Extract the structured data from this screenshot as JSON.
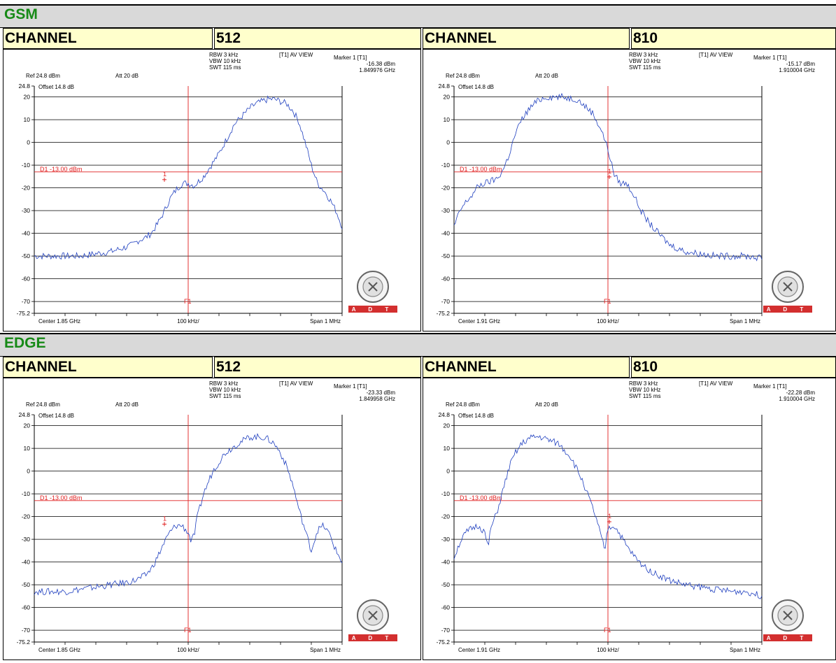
{
  "sections": [
    {
      "title": "GSM",
      "panels": [
        {
          "channel_label": "CHANNEL",
          "channel": "512",
          "rbw": "RBW 3 kHz",
          "vbw": "VBW 10 kHz",
          "swt": "SWT 115 ms",
          "view": "[T1] AV VIEW",
          "marker_title": "Marker 1 [T1]",
          "marker_level": "-16.38 dBm",
          "marker_freq": "1.849976 GHz",
          "ref": "Ref 24.8 dBm",
          "att": "Att 20 dB",
          "offset": "Offset 14.8 dB",
          "center": "Center 1.85 GHz",
          "div": "100 kHz/",
          "span": "Span 1 MHz",
          "d1": "D1 -13.00 dBm",
          "f1": "F1",
          "marker_num": "1"
        },
        {
          "channel_label": "CHANNEL",
          "channel": "810",
          "rbw": "RBW 3 kHz",
          "vbw": "VBW 10 kHz",
          "swt": "SWT 115 ms",
          "view": "[T1] AV VIEW",
          "marker_title": "Marker 1 [T1]",
          "marker_level": "-15.17 dBm",
          "marker_freq": "1.910004 GHz",
          "ref": "Ref 24.8 dBm",
          "att": "Att 20 dB",
          "offset": "Offset 14.8 dB",
          "center": "Center 1.91 GHz",
          "div": "100 kHz/",
          "span": "Span 1 MHz",
          "d1": "D1 -13.00 dBm",
          "f1": "F1",
          "marker_num": "1"
        }
      ]
    },
    {
      "title": "EDGE",
      "panels": [
        {
          "channel_label": "CHANNEL",
          "channel": "512",
          "rbw": "RBW 3 kHz",
          "vbw": "VBW 10 kHz",
          "swt": "SWT 115 ms",
          "view": "[T1] AV VIEW",
          "marker_title": "Marker 1 [T1]",
          "marker_level": "-23.33 dBm",
          "marker_freq": "1.849958 GHz",
          "ref": "Ref 24.8 dBm",
          "att": "Att 20 dB",
          "offset": "Offset 14.8 dB",
          "center": "Center 1.85 GHz",
          "div": "100 kHz/",
          "span": "Span 1 MHz",
          "d1": "D1 -13.00 dBm",
          "f1": "F1",
          "marker_num": "1"
        },
        {
          "channel_label": "CHANNEL",
          "channel": "810",
          "rbw": "RBW 3 kHz",
          "vbw": "VBW 10 kHz",
          "swt": "SWT 115 ms",
          "view": "[T1] AV VIEW",
          "marker_title": "Marker 1 [T1]",
          "marker_level": "-22.28 dBm",
          "marker_freq": "1.910004 GHz",
          "ref": "Ref 24.8 dBm",
          "att": "Att 20 dB",
          "offset": "Offset 14.8 dB",
          "center": "Center 1.91 GHz",
          "div": "100 kHz/",
          "span": "Span 1 MHz",
          "d1": "D1 -13.00 dBm",
          "f1": "F1",
          "marker_num": "1"
        }
      ]
    }
  ],
  "logo": {
    "text": "A D T"
  },
  "colors": {
    "trace": "#1f3fbf",
    "limit": "#e02020",
    "band_title": "#178a17",
    "header_bg": "#ffffcc",
    "band_bg": "#d9d9d9",
    "logo_bg": "#d32f2f"
  },
  "chart_data": [
    {
      "type": "line",
      "title": "GSM CHANNEL 512",
      "xlabel": "",
      "ylabel": "",
      "x_unit": "MHz",
      "ylim": [
        -75.2,
        24.8
      ],
      "xlim": [
        0,
        1
      ],
      "yticks": [
        "24.8",
        "20",
        "10",
        "0",
        "-10",
        "-20",
        "-30",
        "-40",
        "-50",
        "-60",
        "-70",
        "-75.2"
      ],
      "limit_line": -13,
      "marker": {
        "x": 0.45,
        "y": -16.38
      },
      "series": [
        {
          "x": [
            0,
            0.05,
            0.1,
            0.15,
            0.2,
            0.25,
            0.3,
            0.32,
            0.34,
            0.36,
            0.38,
            0.4,
            0.42,
            0.44,
            0.46,
            0.48,
            0.5,
            0.52,
            0.55,
            0.6,
            0.65,
            0.7,
            0.72,
            0.74,
            0.76,
            0.78,
            0.8,
            0.82,
            0.84,
            0.86,
            0.88,
            0.9,
            0.92,
            0.94,
            0.96,
            0.98,
            1.0
          ],
          "y": [
            -50,
            -50,
            -50,
            -50,
            -49,
            -48,
            -46,
            -45,
            -43,
            -42,
            -40,
            -36,
            -31,
            -25,
            -21,
            -18,
            -18,
            -19,
            -15,
            -5,
            8,
            15,
            17,
            18,
            19,
            19,
            18,
            17,
            14,
            9,
            0,
            -10,
            -18,
            -21,
            -25,
            -30,
            -37
          ]
        }
      ]
    },
    {
      "type": "line",
      "title": "GSM CHANNEL 810",
      "xlabel": "",
      "ylabel": "",
      "x_unit": "MHz",
      "ylim": [
        -75.2,
        24.8
      ],
      "xlim": [
        0,
        1
      ],
      "yticks": [
        "24.8",
        "20",
        "10",
        "0",
        "-10",
        "-20",
        "-30",
        "-40",
        "-50",
        "-60",
        "-70",
        "-75.2"
      ],
      "limit_line": -13,
      "marker": {
        "x": 0.5,
        "y": -15.17
      },
      "series": [
        {
          "x": [
            0,
            0.02,
            0.04,
            0.06,
            0.08,
            0.1,
            0.12,
            0.14,
            0.16,
            0.18,
            0.2,
            0.22,
            0.24,
            0.26,
            0.28,
            0.3,
            0.35,
            0.4,
            0.45,
            0.48,
            0.5,
            0.52,
            0.54,
            0.56,
            0.58,
            0.6,
            0.62,
            0.65,
            0.7,
            0.75,
            0.8,
            0.85,
            0.9,
            0.95,
            1.0
          ],
          "y": [
            -37,
            -30,
            -26,
            -23,
            -19,
            -18,
            -17,
            -16,
            -12,
            -5,
            4,
            10,
            14,
            17,
            19,
            20,
            20,
            19,
            13,
            5,
            -3,
            -14,
            -18,
            -18,
            -22,
            -28,
            -33,
            -38,
            -45,
            -48,
            -49,
            -50,
            -50,
            -50,
            -51
          ]
        }
      ]
    },
    {
      "type": "line",
      "title": "EDGE CHANNEL 512",
      "xlabel": "",
      "ylabel": "",
      "x_unit": "MHz",
      "ylim": [
        -75.2,
        24.8
      ],
      "xlim": [
        0,
        1
      ],
      "yticks": [
        "24.8",
        "20",
        "10",
        "0",
        "-10",
        "-20",
        "-30",
        "-40",
        "-50",
        "-60",
        "-70",
        "-75.2"
      ],
      "limit_line": -13,
      "marker": {
        "x": 0.45,
        "y": -23.33
      },
      "series": [
        {
          "x": [
            0,
            0.05,
            0.1,
            0.15,
            0.2,
            0.25,
            0.3,
            0.33,
            0.36,
            0.38,
            0.4,
            0.42,
            0.44,
            0.46,
            0.48,
            0.5,
            0.51,
            0.52,
            0.53,
            0.55,
            0.58,
            0.62,
            0.66,
            0.7,
            0.72,
            0.74,
            0.76,
            0.78,
            0.8,
            0.82,
            0.84,
            0.86,
            0.88,
            0.9,
            0.92,
            0.94,
            0.96,
            0.98,
            1.0
          ],
          "y": [
            -53,
            -53,
            -53,
            -52,
            -51,
            -50,
            -49,
            -48,
            -46,
            -43,
            -38,
            -32,
            -27,
            -24,
            -24,
            -27,
            -31,
            -28,
            -20,
            -10,
            0,
            8,
            12,
            15,
            15,
            15,
            14,
            12,
            8,
            2,
            -6,
            -17,
            -26,
            -35,
            -26,
            -24,
            -28,
            -35,
            -40
          ]
        }
      ]
    },
    {
      "type": "line",
      "title": "EDGE CHANNEL 810",
      "xlabel": "",
      "ylabel": "",
      "x_unit": "MHz",
      "ylim": [
        -75.2,
        24.8
      ],
      "xlim": [
        0,
        1
      ],
      "yticks": [
        "24.8",
        "20",
        "10",
        "0",
        "-10",
        "-20",
        "-30",
        "-40",
        "-50",
        "-60",
        "-70",
        "-75.2"
      ],
      "limit_line": -13,
      "marker": {
        "x": 0.5,
        "y": -22.28
      },
      "series": [
        {
          "x": [
            0,
            0.02,
            0.04,
            0.06,
            0.08,
            0.1,
            0.11,
            0.12,
            0.14,
            0.16,
            0.18,
            0.2,
            0.22,
            0.24,
            0.26,
            0.28,
            0.3,
            0.34,
            0.38,
            0.42,
            0.46,
            0.48,
            0.49,
            0.5,
            0.52,
            0.54,
            0.56,
            0.6,
            0.65,
            0.7,
            0.75,
            0.8,
            0.85,
            0.9,
            0.95,
            1.0
          ],
          "y": [
            -38,
            -31,
            -27,
            -25,
            -24,
            -27,
            -34,
            -25,
            -18,
            -8,
            2,
            8,
            12,
            14,
            15,
            15,
            14,
            12,
            6,
            -5,
            -20,
            -30,
            -35,
            -25,
            -24,
            -28,
            -33,
            -40,
            -45,
            -48,
            -50,
            -51,
            -52,
            -53,
            -53,
            -55
          ]
        }
      ]
    }
  ]
}
